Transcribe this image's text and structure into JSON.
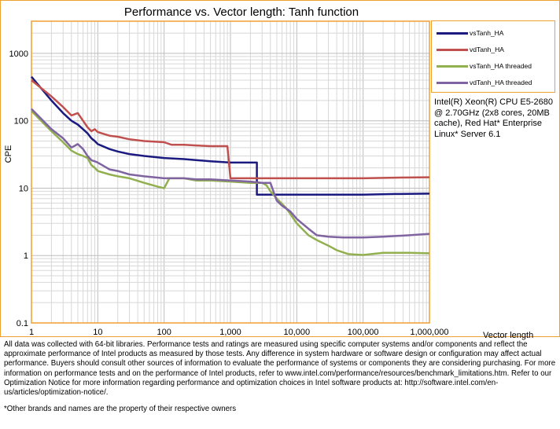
{
  "chart_data": {
    "type": "line",
    "title": "Performance vs. Vector length: Tanh function",
    "xlabel": "Vector length",
    "ylabel": "CPE",
    "xscale": "log",
    "yscale": "log",
    "xlim": [
      1,
      1000000
    ],
    "ylim": [
      0.1,
      3000
    ],
    "x_tick_labels": [
      "1",
      "10",
      "100",
      "1,000",
      "10,000",
      "100,000",
      "1,000,000"
    ],
    "y_tick_labels": [
      "0.1",
      "1",
      "10",
      "100",
      "1000"
    ],
    "grid": true,
    "legend_position": "right",
    "series": [
      {
        "name": "vsTanh_HA",
        "color": "#1a1a80",
        "points": [
          [
            1,
            450
          ],
          [
            2,
            200
          ],
          [
            3,
            130
          ],
          [
            4,
            100
          ],
          [
            5,
            88
          ],
          [
            6,
            75
          ],
          [
            7,
            65
          ],
          [
            8,
            55
          ],
          [
            9,
            50
          ],
          [
            10,
            45
          ],
          [
            15,
            38
          ],
          [
            20,
            35
          ],
          [
            30,
            32
          ],
          [
            50,
            30
          ],
          [
            100,
            28
          ],
          [
            200,
            27
          ],
          [
            500,
            25
          ],
          [
            1000,
            24
          ],
          [
            2000,
            24
          ],
          [
            2500,
            24
          ],
          [
            2500,
            8
          ],
          [
            5000,
            8
          ],
          [
            10000,
            8
          ],
          [
            30000,
            8
          ],
          [
            100000,
            8
          ],
          [
            300000,
            8.2
          ],
          [
            1000000,
            8.3
          ]
        ]
      },
      {
        "name": "vdTanh_HA",
        "color": "#c0504d",
        "points": [
          [
            1,
            400
          ],
          [
            2,
            230
          ],
          [
            3,
            160
          ],
          [
            4,
            120
          ],
          [
            5,
            130
          ],
          [
            6,
            100
          ],
          [
            7,
            80
          ],
          [
            8,
            70
          ],
          [
            9,
            75
          ],
          [
            10,
            68
          ],
          [
            15,
            60
          ],
          [
            20,
            58
          ],
          [
            30,
            53
          ],
          [
            50,
            50
          ],
          [
            100,
            48
          ],
          [
            130,
            44
          ],
          [
            200,
            44
          ],
          [
            300,
            43
          ],
          [
            500,
            42
          ],
          [
            700,
            42
          ],
          [
            900,
            42
          ],
          [
            1000,
            14
          ],
          [
            2000,
            14
          ],
          [
            5000,
            14
          ],
          [
            10000,
            14
          ],
          [
            50000,
            14
          ],
          [
            100000,
            14
          ],
          [
            300000,
            14.3
          ],
          [
            1000000,
            14.5
          ]
        ]
      },
      {
        "name": "vsTanh_HA threaded",
        "color": "#92b050",
        "points": [
          [
            1,
            140
          ],
          [
            2,
            70
          ],
          [
            3,
            48
          ],
          [
            4,
            36
          ],
          [
            5,
            32
          ],
          [
            6,
            30
          ],
          [
            7,
            28
          ],
          [
            8,
            22
          ],
          [
            9,
            20
          ],
          [
            10,
            18
          ],
          [
            15,
            16
          ],
          [
            20,
            15
          ],
          [
            30,
            14
          ],
          [
            50,
            12
          ],
          [
            80,
            10.5
          ],
          [
            100,
            10
          ],
          [
            120,
            14
          ],
          [
            200,
            14
          ],
          [
            300,
            13
          ],
          [
            500,
            13
          ],
          [
            1000,
            12.5
          ],
          [
            2000,
            12
          ],
          [
            3000,
            12
          ],
          [
            3500,
            11
          ],
          [
            4000,
            9
          ],
          [
            5000,
            7
          ],
          [
            7000,
            5
          ],
          [
            10000,
            3
          ],
          [
            15000,
            2
          ],
          [
            20000,
            1.7
          ],
          [
            30000,
            1.4
          ],
          [
            40000,
            1.2
          ],
          [
            60000,
            1.05
          ],
          [
            80000,
            1.03
          ],
          [
            100000,
            1.02
          ],
          [
            200000,
            1.1
          ],
          [
            500000,
            1.1
          ],
          [
            1000000,
            1.08
          ]
        ]
      },
      {
        "name": "vdTanh_HA threaded",
        "color": "#8064a2",
        "points": [
          [
            1,
            150
          ],
          [
            2,
            75
          ],
          [
            3,
            55
          ],
          [
            4,
            40
          ],
          [
            5,
            45
          ],
          [
            6,
            38
          ],
          [
            7,
            30
          ],
          [
            8,
            26
          ],
          [
            9,
            25
          ],
          [
            10,
            24
          ],
          [
            15,
            19
          ],
          [
            20,
            18
          ],
          [
            30,
            16
          ],
          [
            50,
            15
          ],
          [
            100,
            14
          ],
          [
            200,
            14
          ],
          [
            300,
            13.5
          ],
          [
            500,
            13.5
          ],
          [
            1000,
            13
          ],
          [
            2000,
            12.5
          ],
          [
            3000,
            12
          ],
          [
            4000,
            12
          ],
          [
            5000,
            6.5
          ],
          [
            6000,
            5.5
          ],
          [
            8000,
            4.5
          ],
          [
            10000,
            3.5
          ],
          [
            15000,
            2.5
          ],
          [
            20000,
            2.0
          ],
          [
            30000,
            1.9
          ],
          [
            50000,
            1.85
          ],
          [
            100000,
            1.85
          ],
          [
            200000,
            1.9
          ],
          [
            500000,
            2.0
          ],
          [
            1000000,
            2.1
          ]
        ]
      }
    ]
  },
  "note": "Intel(R) Xeon(R) CPU E5-2680 @ 2.70GHz (2x8 cores, 20MB cache), Red Hat* Enterprise Linux* Server 6.1",
  "disclaimer": "All data was collected with 64-bit libraries. Performance tests and ratings are measured using specific computer systems and/or components and reflect the approximate performance of Intel products as measured by those tests. Any difference in system hardware or software design or configuration may affect actual performance. Buyers should consult other sources of information to evaluate the performance of systems or components they are considering purchasing. For more information on performance tests and on the performance of Intel products, refer to www.intel.com/performance/resources/benchmark_limitations.htm. Refer to our Optimization Notice for more information regarding performance and optimization choices in Intel software products at: http://software.intel.com/en-us/articles/optimization-notice/.",
  "footnote": "*Other brands and names are the property of their respective owners"
}
